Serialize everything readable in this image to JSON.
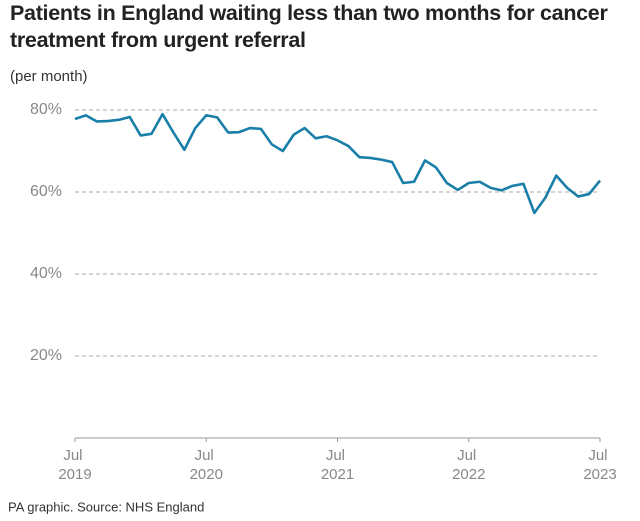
{
  "chart_data": {
    "type": "line",
    "title": "Patients in England waiting less than two months for cancer treatment from urgent referral",
    "subtitle": "(per month)",
    "source": "PA graphic. Source: NHS England",
    "x": [
      "2019-07",
      "2019-08",
      "2019-09",
      "2019-10",
      "2019-11",
      "2019-12",
      "2020-01",
      "2020-02",
      "2020-03",
      "2020-04",
      "2020-05",
      "2020-06",
      "2020-07",
      "2020-08",
      "2020-09",
      "2020-10",
      "2020-11",
      "2020-12",
      "2021-01",
      "2021-02",
      "2021-03",
      "2021-04",
      "2021-05",
      "2021-06",
      "2021-07",
      "2021-08",
      "2021-09",
      "2021-10",
      "2021-11",
      "2021-12",
      "2022-01",
      "2022-02",
      "2022-03",
      "2022-04",
      "2022-05",
      "2022-06",
      "2022-07",
      "2022-08",
      "2022-09",
      "2022-10",
      "2022-11",
      "2022-12",
      "2023-01",
      "2023-02",
      "2023-03",
      "2023-04",
      "2023-05",
      "2023-06",
      "2023-07"
    ],
    "series": [
      {
        "name": "Patients waiting less than two months",
        "color": "#1a7fa8",
        "values": [
          77.8,
          78.7,
          77.2,
          77.3,
          77.6,
          78.3,
          73.8,
          74.2,
          79.0,
          74.5,
          70.3,
          75.6,
          78.7,
          78.2,
          74.5,
          74.6,
          75.6,
          75.4,
          71.6,
          70.0,
          74.0,
          75.6,
          73.1,
          73.6,
          72.6,
          71.2,
          68.5,
          68.3,
          67.9,
          67.3,
          62.2,
          62.5,
          67.7,
          66.0,
          62.2,
          60.5,
          62.2,
          62.5,
          61.0,
          60.4,
          61.5,
          62.0,
          54.9,
          58.6,
          64.0,
          61.0,
          58.9,
          59.5,
          62.8
        ]
      }
    ],
    "xlim": [
      "2019-07",
      "2023-07"
    ],
    "xticks": [
      {
        "value": "2019-07",
        "label": "Jul 2019"
      },
      {
        "value": "2020-07",
        "label": "Jul 2020"
      },
      {
        "value": "2021-07",
        "label": "Jul 2021"
      },
      {
        "value": "2022-07",
        "label": "Jul 2022"
      },
      {
        "value": "2023-07",
        "label": "Jul 2023"
      }
    ],
    "ylim": [
      0,
      80
    ],
    "yticks": [
      {
        "value": 20,
        "label": "20%"
      },
      {
        "value": 40,
        "label": "40%"
      },
      {
        "value": 60,
        "label": "60%"
      },
      {
        "value": 80,
        "label": "80%"
      }
    ],
    "grid": true
  }
}
